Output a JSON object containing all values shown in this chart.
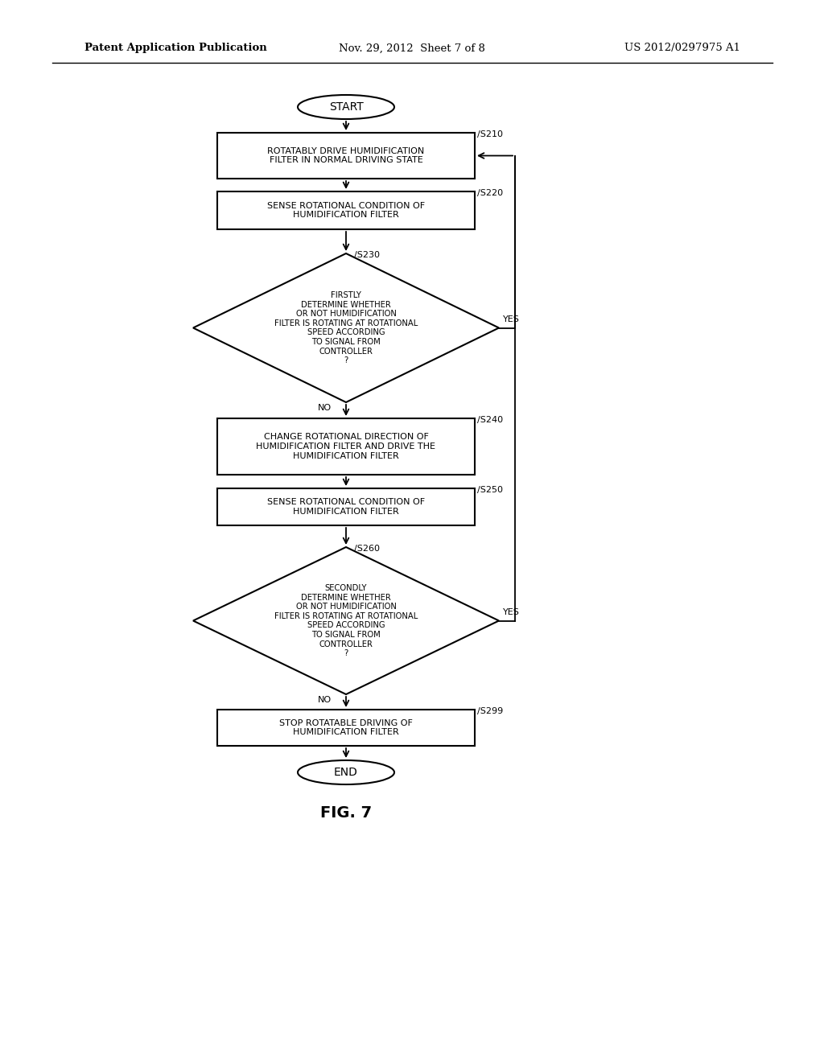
{
  "header_left": "Patent Application Publication",
  "header_center": "Nov. 29, 2012  Sheet 7 of 8",
  "header_right": "US 2012/0297975 A1",
  "figure_label": "FIG. 7",
  "background_color": "#ffffff",
  "line_color": "#000000",
  "text_color": "#000000",
  "start_label": "START",
  "end_label": "END",
  "s210_label": "ROTATABLY DRIVE HUMIDIFICATION\nFILTER IN NORMAL DRIVING STATE",
  "s220_label": "SENSE ROTATIONAL CONDITION OF\nHUMIDIFICATION FILTER",
  "s230_label": "FIRSTLY\nDETERMINE WHETHER\nOR NOT HUMIDIFICATION\nFILTER IS ROTATING AT ROTATIONAL\nSPEED ACCORDING\nTO SIGNAL FROM\nCONTROLLER\n?",
  "s240_label": "CHANGE ROTATIONAL DIRECTION OF\nHUMIDIFICATION FILTER AND DRIVE THE\nHUMIDIFICATION FILTER",
  "s250_label": "SENSE ROTATIONAL CONDITION OF\nHUMIDIFICATION FILTER",
  "s260_label": "SECONDLY\nDETERMINE WHETHER\nOR NOT HUMIDIFICATION\nFILTER IS ROTATING AT ROTATIONAL\nSPEED ACCORDING\nTO SIGNAL FROM\nCONTROLLER\n?",
  "s299_label": "STOP ROTATABLE DRIVING OF\nHUMIDIFICATION FILTER"
}
